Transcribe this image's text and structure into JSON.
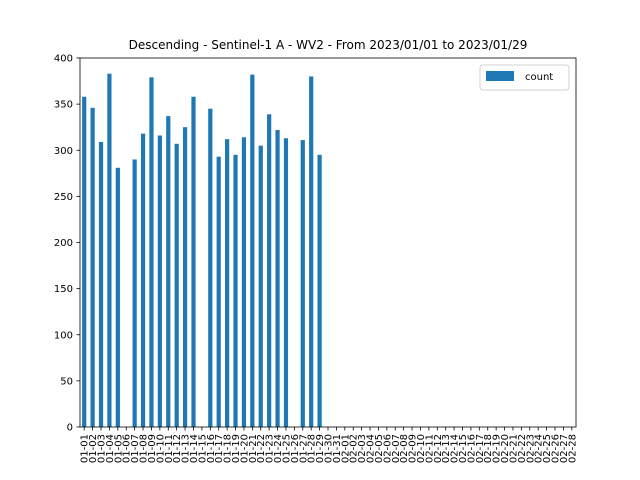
{
  "chart_data": {
    "type": "bar",
    "title": "Descending - Sentinel-1 A - WV2 - From 2023/01/01 to 2023/01/29",
    "xlabel": "",
    "ylabel": "",
    "ylim": [
      0,
      400
    ],
    "yticks": [
      0,
      50,
      100,
      150,
      200,
      250,
      300,
      350,
      400
    ],
    "legend": {
      "position": "top-right",
      "entries": [
        "count"
      ]
    },
    "bar_color": "#1f77b4",
    "categories": [
      "01-01",
      "01-02",
      "01-03",
      "01-04",
      "01-05",
      "01-06",
      "01-07",
      "01-08",
      "01-09",
      "01-10",
      "01-11",
      "01-12",
      "01-13",
      "01-14",
      "01-15",
      "01-16",
      "01-17",
      "01-18",
      "01-19",
      "01-20",
      "01-21",
      "01-22",
      "01-23",
      "01-24",
      "01-25",
      "01-26",
      "01-27",
      "01-28",
      "01-29",
      "01-30",
      "01-31",
      "02-01",
      "02-02",
      "02-03",
      "02-04",
      "02-05",
      "02-06",
      "02-07",
      "02-08",
      "02-09",
      "02-10",
      "02-11",
      "02-12",
      "02-13",
      "02-14",
      "02-15",
      "02-16",
      "02-17",
      "02-18",
      "02-19",
      "02-20",
      "02-21",
      "02-22",
      "02-23",
      "02-24",
      "02-25",
      "02-26",
      "02-27",
      "02-28"
    ],
    "series": [
      {
        "name": "count",
        "values": [
          358,
          346,
          309,
          383,
          281,
          0,
          290,
          318,
          379,
          316,
          337,
          307,
          325,
          358,
          0,
          345,
          293,
          312,
          295,
          314,
          382,
          305,
          339,
          322,
          313,
          0,
          311,
          380,
          295,
          0,
          0,
          0,
          0,
          0,
          0,
          0,
          0,
          0,
          0,
          0,
          0,
          0,
          0,
          0,
          0,
          0,
          0,
          0,
          0,
          0,
          0,
          0,
          0,
          0,
          0,
          0,
          0,
          0,
          0
        ]
      }
    ]
  }
}
